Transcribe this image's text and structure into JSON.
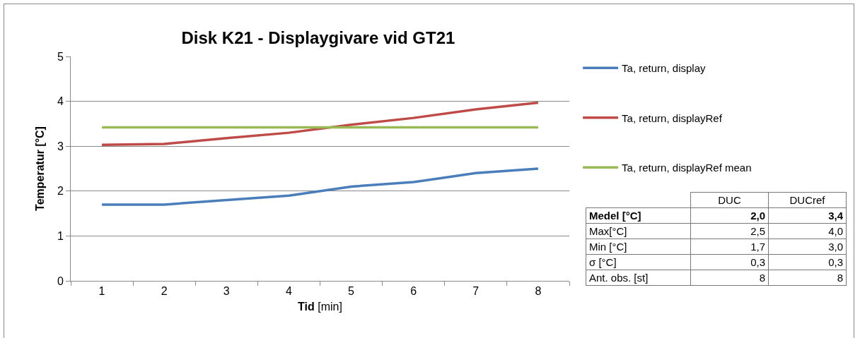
{
  "chart_data": {
    "type": "line",
    "title": "Disk K21 - Displaygivare vid GT21",
    "xlabel": "Tid [min]",
    "ylabel": "Temperatur [°C]",
    "categories": [
      "1",
      "2",
      "3",
      "4",
      "5",
      "6",
      "7",
      "8"
    ],
    "series": [
      {
        "name": "Ta, return, display",
        "color": "#4a7ebb",
        "values": [
          1.7,
          1.7,
          1.8,
          1.9,
          2.1,
          2.2,
          2.4,
          2.5
        ]
      },
      {
        "name": "Ta, return, displayRef",
        "color": "#be4b48",
        "values": [
          3.03,
          3.05,
          3.18,
          3.3,
          3.48,
          3.63,
          3.82,
          3.97
        ]
      },
      {
        "name": "Ta, return, displayRef mean",
        "color": "#98b954",
        "values": [
          3.42,
          3.42,
          3.42,
          3.42,
          3.42,
          3.42,
          3.42,
          3.42
        ]
      }
    ],
    "ylim": [
      0,
      5
    ],
    "yticks": [
      0,
      1,
      2,
      3,
      4,
      5
    ],
    "grid": "y",
    "legend": "right",
    "marker": "none",
    "line_style": "solid",
    "annotations": [
      "DUC",
      "DUCref",
      "Medel [°C]",
      "2,0",
      "3,4",
      "Max[°C]",
      "2,5",
      "4,0",
      "Min [°C]",
      "1,7",
      "3,0",
      "σ [°C]",
      "0,3",
      "0,3",
      "Ant. obs. [st]",
      "8",
      "8"
    ]
  }
}
